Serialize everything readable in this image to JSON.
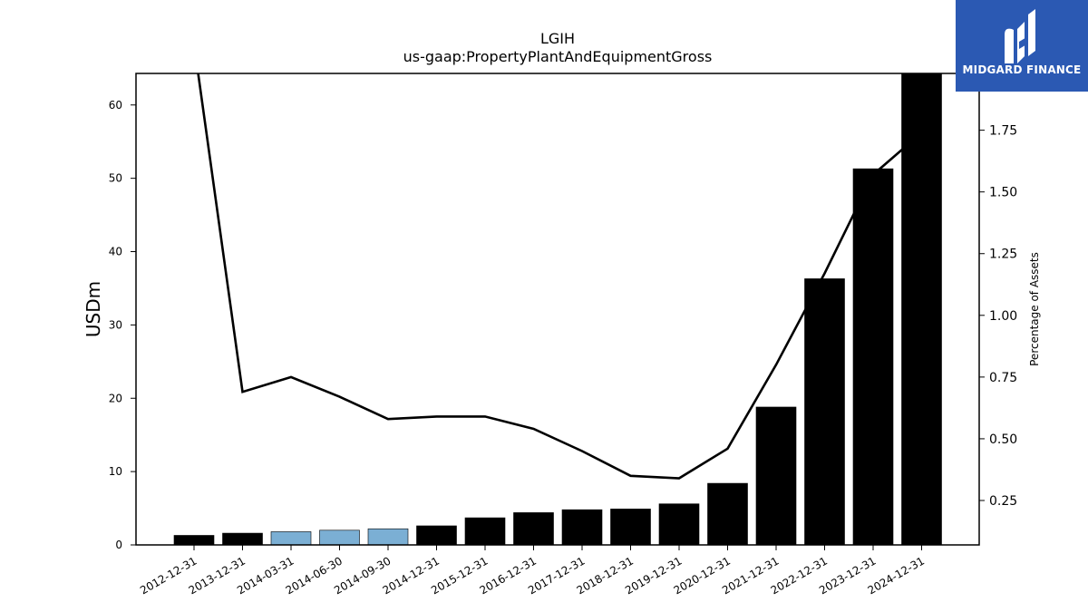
{
  "chart_data": {
    "type": "bar",
    "title": "LGIH",
    "subtitle": "us-gaap:PropertyPlantAndEquipmentGross",
    "ylabel": "USDm",
    "y2label": "Percentage of Assets",
    "ylim": [
      0,
      64.3
    ],
    "y2lim": [
      0.07,
      1.98
    ],
    "yticks": [
      0,
      10,
      20,
      30,
      40,
      50,
      60
    ],
    "y2ticks": [
      0.25,
      0.5,
      0.75,
      1.0,
      1.25,
      1.5,
      1.75
    ],
    "categories": [
      "2012-12-31",
      "2013-12-31",
      "2014-03-31",
      "2014-06-30",
      "2014-09-30",
      "2014-12-31",
      "2015-12-31",
      "2016-12-31",
      "2017-12-31",
      "2018-12-31",
      "2019-12-31",
      "2020-12-31",
      "2021-12-31",
      "2022-12-31",
      "2023-12-31",
      "2024-12-31"
    ],
    "series": [
      {
        "type": "bar",
        "values": [
          1.3,
          1.6,
          1.8,
          2.0,
          2.2,
          2.6,
          3.7,
          4.4,
          4.8,
          4.9,
          5.6,
          8.4,
          18.8,
          36.3,
          51.3,
          64.5
        ],
        "colors": [
          "#000000",
          "#000000",
          "#7bafd4",
          "#7bafd4",
          "#7bafd4",
          "#000000",
          "#000000",
          "#000000",
          "#000000",
          "#000000",
          "#000000",
          "#000000",
          "#000000",
          "#000000",
          "#000000",
          "#000000"
        ]
      },
      {
        "type": "line",
        "axis": "right",
        "values": [
          2.1,
          0.69,
          0.75,
          0.67,
          0.58,
          0.59,
          0.59,
          0.54,
          0.45,
          0.35,
          0.34,
          0.46,
          0.8,
          1.17,
          1.57,
          1.74
        ],
        "color": "#000000"
      }
    ],
    "grid": false
  },
  "logo": {
    "text": "MIDGARD FINANCE",
    "icon": "midgard-logo-icon",
    "background": "#2b59b3"
  }
}
